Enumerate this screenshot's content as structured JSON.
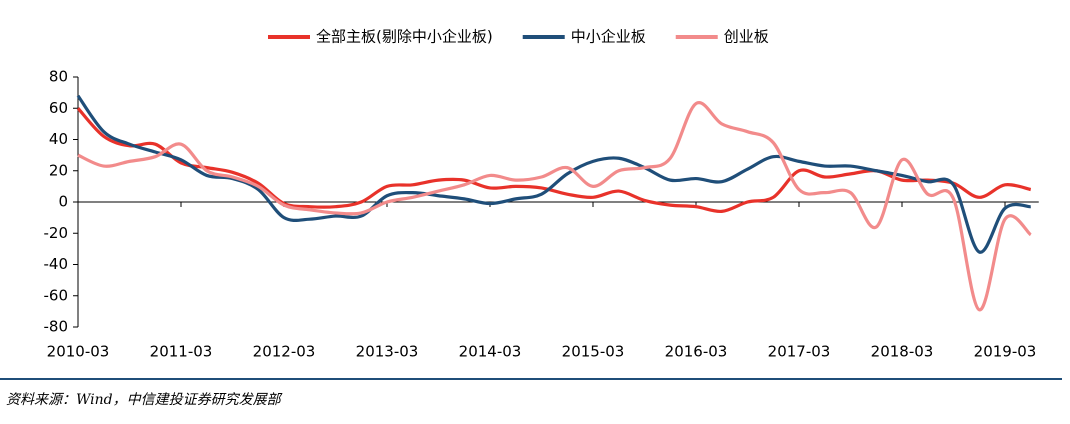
{
  "chart_data": {
    "type": "line",
    "categories": [
      "2010-03",
      null,
      null,
      null,
      "2011-03",
      null,
      null,
      null,
      "2012-03",
      null,
      null,
      null,
      "2013-03",
      null,
      null,
      null,
      "2014-03",
      null,
      null,
      null,
      "2015-03",
      null,
      null,
      null,
      "2016-03",
      null,
      null,
      null,
      "2017-03",
      null,
      null,
      null,
      "2018-03",
      null,
      null,
      null,
      "2019-03",
      null
    ],
    "series": [
      {
        "name": "全部主板(剔除中小企业板)",
        "color": "#e8322a",
        "values": [
          60,
          42,
          36,
          37,
          25,
          22,
          19,
          12,
          -1,
          -3,
          -3,
          0,
          10,
          11,
          14,
          14,
          9,
          10,
          9,
          5,
          3,
          7,
          1,
          -2,
          -3,
          -6,
          0,
          3,
          20,
          16,
          18,
          20,
          14,
          14,
          12,
          3,
          11,
          8
        ]
      },
      {
        "name": "中小企业板",
        "color": "#1f4e79",
        "values": [
          68,
          45,
          37,
          32,
          27,
          17,
          15,
          8,
          -10,
          -11,
          -9,
          -9,
          4,
          6,
          4,
          2,
          -1,
          2,
          5,
          18,
          26,
          28,
          22,
          14,
          15,
          13,
          21,
          29,
          26,
          23,
          23,
          20,
          17,
          13,
          11,
          -32,
          -4,
          -3
        ]
      },
      {
        "name": "创业板",
        "color": "#f28b8b",
        "values": [
          30,
          23,
          26,
          29,
          37,
          20,
          16,
          10,
          -2,
          -5,
          -7,
          -7,
          0,
          3,
          7,
          11,
          17,
          14,
          16,
          22,
          10,
          20,
          22,
          28,
          63,
          50,
          45,
          38,
          8,
          6,
          6,
          -16,
          27,
          5,
          2,
          -69,
          -11,
          -21
        ]
      }
    ],
    "ylim": [
      -80,
      80
    ],
    "yticks": [
      -80,
      -60,
      -40,
      -20,
      0,
      20,
      40,
      60,
      80
    ],
    "source": "资料来源：Wind，中信建投证券研究发展部"
  }
}
